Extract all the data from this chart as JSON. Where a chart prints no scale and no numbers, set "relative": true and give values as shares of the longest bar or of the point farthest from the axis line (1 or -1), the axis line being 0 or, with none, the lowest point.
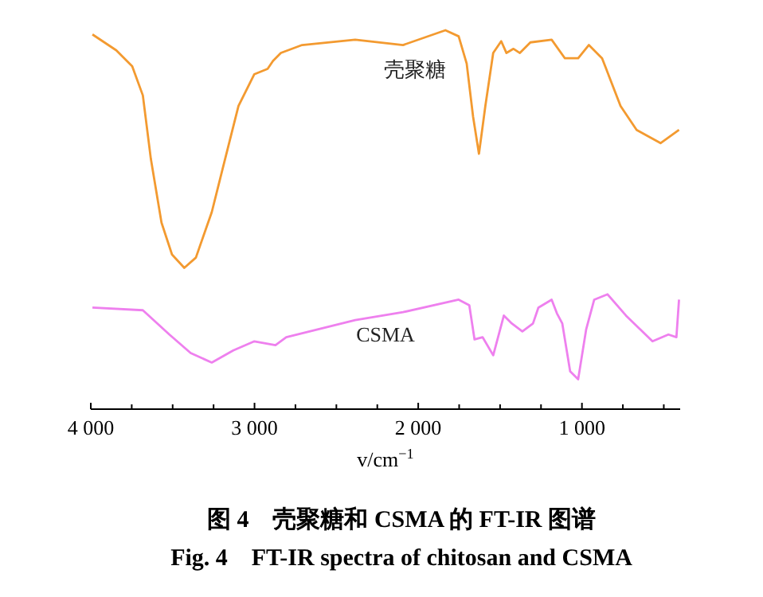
{
  "chart_data": {
    "type": "line",
    "relative": true,
    "title": "图 4　壳聚糖和 CSMA 的 FT-IR 图谱",
    "subtitle": "Fig. 4　FT-IR spectra of chitosan and CSMA",
    "xlabel": "v/cm$^{−1}$",
    "xlim": [
      4000,
      400
    ],
    "xticks": [
      {
        "value": 4000,
        "label": "4 000"
      },
      {
        "value": 3750,
        "label": null
      },
      {
        "value": 3500,
        "label": null
      },
      {
        "value": 3250,
        "label": null
      },
      {
        "value": 3000,
        "label": "3 000"
      },
      {
        "value": 2750,
        "label": null
      },
      {
        "value": 2500,
        "label": null
      },
      {
        "value": 2250,
        "label": null
      },
      {
        "value": 2000,
        "label": "2 000"
      },
      {
        "value": 1750,
        "label": null
      },
      {
        "value": 1500,
        "label": null
      },
      {
        "value": 1250,
        "label": null
      },
      {
        "value": 1000,
        "label": "1 000"
      },
      {
        "value": 750,
        "label": null
      },
      {
        "value": 500,
        "label": null
      }
    ],
    "tick_labels": "x",
    "grid": false,
    "series": [
      {
        "name": "壳聚糖",
        "color": "#f39a30",
        "x": [
          3990,
          3844,
          3747,
          3682,
          3633,
          3568,
          3504,
          3429,
          3358,
          3261,
          3196,
          3098,
          3001,
          2920,
          2887,
          2839,
          2709,
          2385,
          2093,
          1834,
          1753,
          1704,
          1665,
          1629,
          1590,
          1542,
          1493,
          1461,
          1418,
          1379,
          1315,
          1185,
          1104,
          1023,
          958,
          877,
          764,
          666,
          520,
          407
        ],
        "values": [
          0.989,
          0.947,
          0.905,
          0.828,
          0.66,
          0.492,
          0.408,
          0.373,
          0.4,
          0.52,
          0.632,
          0.8,
          0.884,
          0.898,
          0.919,
          0.94,
          0.961,
          0.975,
          0.961,
          1,
          0.984,
          0.912,
          0.772,
          0.674,
          0.8,
          0.94,
          0.971,
          0.94,
          0.951,
          0.94,
          0.968,
          0.975,
          0.926,
          0.926,
          0.961,
          0.926,
          0.8,
          0.737,
          0.702,
          0.737
        ]
      },
      {
        "name": "CSMA",
        "color": "#ee80ee",
        "x": [
          3990,
          3682,
          3520,
          3390,
          3261,
          3130,
          3001,
          2872,
          2806,
          2385,
          2093,
          1753,
          1688,
          1656,
          1607,
          1542,
          1477,
          1428,
          1364,
          1299,
          1266,
          1185,
          1153,
          1120,
          1072,
          1023,
          974,
          925,
          844,
          731,
          569,
          472,
          423,
          407
        ],
        "values": [
          0.268,
          0.261,
          0.197,
          0.148,
          0.123,
          0.155,
          0.179,
          0.169,
          0.19,
          0.235,
          0.256,
          0.289,
          0.274,
          0.184,
          0.19,
          0.142,
          0.247,
          0.226,
          0.205,
          0.226,
          0.268,
          0.289,
          0.253,
          0.226,
          0.1,
          0.079,
          0.211,
          0.289,
          0.303,
          0.247,
          0.179,
          0.197,
          0.19,
          0.289
        ]
      }
    ]
  }
}
